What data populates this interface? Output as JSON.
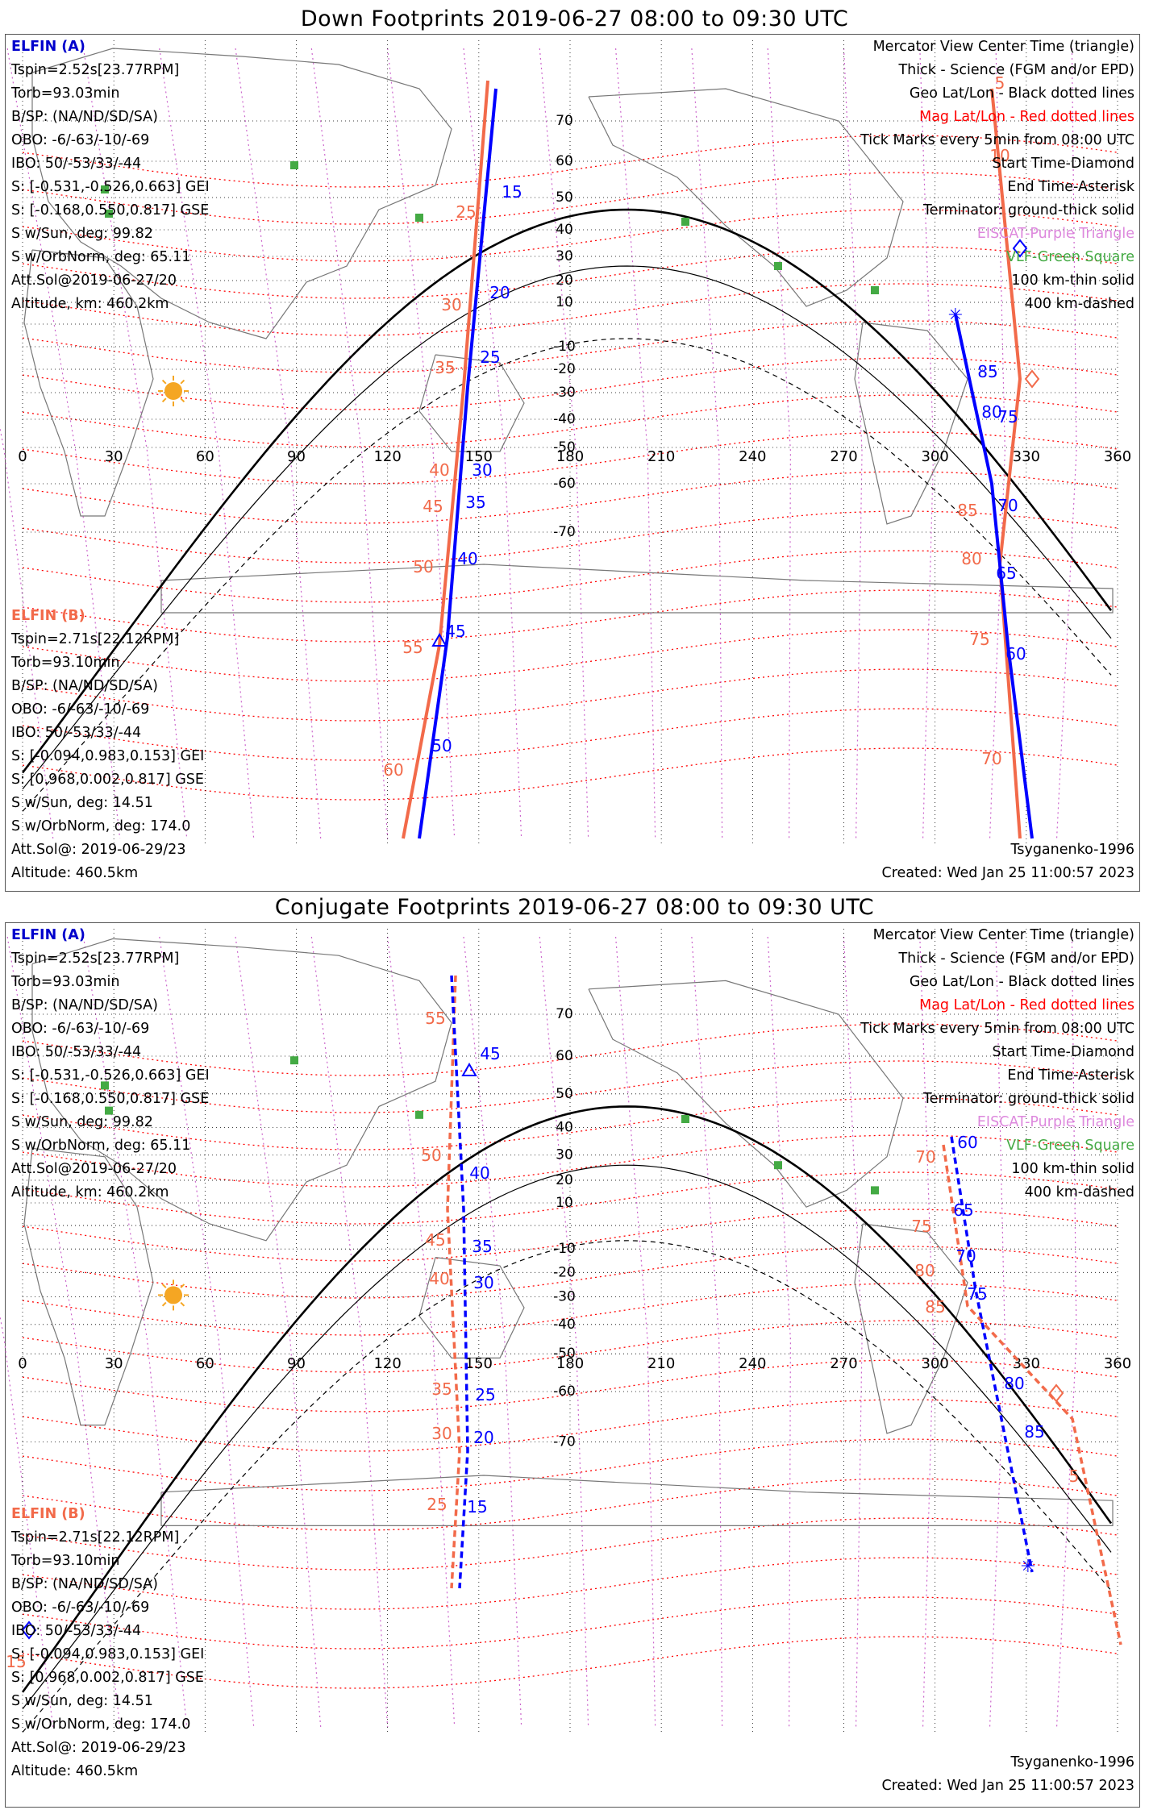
{
  "panels": [
    {
      "title": "Down Footprints 2019-06-27 08:00 to 09:30 UTC",
      "elfin_a": {
        "name": "ELFIN (A)",
        "tspin": "Tspin=2.52s[23.77RPM]",
        "torb": "Torb=93.03min",
        "bsp": "B/SP: (NA/ND/SD/SA)",
        "obo": "OBO: -6/-63/-10/-69",
        "ibo": "IBO: 50/-53/33/-44",
        "s_gei": "S: [-0.531,-0.526,0.663] GEI",
        "s_gse": "S: [-0.168,0.550,0.817] GSE",
        "s_sun": "S w/Sun, deg: 99.82",
        "s_orb": "S w/OrbNorm, deg: 65.11",
        "att": "Att.Sol@2019-06-27/20",
        "alt": "Altitude, km: 460.2km"
      },
      "elfin_b": {
        "name": "ELFIN (B)",
        "tspin": "Tspin=2.71s[22.12RPM]",
        "torb": "Torb=93.10min",
        "bsp": "B/SP: (NA/ND/SD/SA)",
        "obo": "OBO: -6/-63/-10/-69",
        "ibo": "IBO: 50/-53/33/-44",
        "s_gei": "S: [-0.094,0.983,0.153] GEI",
        "s_gse": "S: [0.968,0.002,0.817] GSE",
        "s_sun": "S w/Sun, deg: 14.51",
        "s_orb": "S w/OrbNorm, deg: 174.0",
        "att": "Att.Sol@: 2019-06-29/23",
        "alt": "Altitude: 460.5km"
      },
      "legend": {
        "view": "Mercator View Center Time (triangle)",
        "thick": "Thick - Science (FGM and/or EPD)",
        "geo": "Geo Lat/Lon - Black dotted lines",
        "mag": "Mag Lat/Lon - Red dotted lines",
        "ticks": "Tick Marks every 5min from 08:00 UTC",
        "start": "Start Time-Diamond",
        "end": "End Time-Asterisk",
        "terminator": "Terminator: ground-thick solid",
        "eiscat": "EISCAT-Purple Triangle",
        "vlf": "VLF-Green Square",
        "km100": "100 km-thin solid",
        "km400": "400 km-dashed"
      },
      "model": "Tsyganenko-1996",
      "created": "Created: Wed Jan 25 11:00:57 2023",
      "track_a_labels": [
        "15",
        "20",
        "25",
        "30",
        "35",
        "40",
        "45",
        "50",
        "60",
        "65",
        "70",
        "75",
        "80",
        "85"
      ],
      "track_b_labels": [
        "25",
        "30",
        "35",
        "40",
        "45",
        "50",
        "55",
        "60",
        "70",
        "75",
        "80",
        "85",
        "5",
        "10"
      ]
    },
    {
      "title": "Conjugate Footprints 2019-06-27 08:00 to 09:30 UTC",
      "elfin_a": {
        "name": "ELFIN (A)",
        "tspin": "Tspin=2.52s[23.77RPM]",
        "torb": "Torb=93.03min",
        "bsp": "B/SP: (NA/ND/SD/SA)",
        "obo": "OBO: -6/-63/-10/-69",
        "ibo": "IBO: 50/-53/33/-44",
        "s_gei": "S: [-0.531,-0.526,0.663] GEI",
        "s_gse": "S: [-0.168,0.550,0.817] GSE",
        "s_sun": "S w/Sun, deg: 99.82",
        "s_orb": "S w/OrbNorm, deg: 65.11",
        "att": "Att.Sol@2019-06-27/20",
        "alt": "Altitude, km: 460.2km"
      },
      "elfin_b": {
        "name": "ELFIN (B)",
        "tspin": "Tspin=2.71s[22.12RPM]",
        "torb": "Torb=93.10min",
        "bsp": "B/SP: (NA/ND/SD/SA)",
        "obo": "OBO: -6/-63/-10/-69",
        "ibo": "IBO: 50/-53/33/-44",
        "s_gei": "S: [-0.094,0.983,0.153] GEI",
        "s_gse": "S: [0.968,0.002,0.817] GSE",
        "s_sun": "S w/Sun, deg: 14.51",
        "s_orb": "S w/OrbNorm, deg: 174.0",
        "att": "Att.Sol@: 2019-06-29/23",
        "alt": "Altitude: 460.5km"
      },
      "legend": {
        "view": "Mercator View Center Time (triangle)",
        "thick": "Thick - Science (FGM and/or EPD)",
        "geo": "Geo Lat/Lon - Black dotted lines",
        "mag": "Mag Lat/Lon - Red dotted lines",
        "ticks": "Tick Marks every 5min from 08:00 UTC",
        "start": "Start Time-Diamond",
        "end": "End Time-Asterisk",
        "terminator": "Terminator: ground-thick solid",
        "eiscat": "EISCAT-Purple Triangle",
        "vlf": "VLF-Green Square",
        "km100": "100 km-thin solid",
        "km400": "400 km-dashed"
      },
      "model": "Tsyganenko-1996",
      "created": "Created: Wed Jan 25 11:00:57 2023",
      "track_a_labels": [
        "45",
        "40",
        "35",
        "30",
        "25",
        "20",
        "15",
        "60",
        "65",
        "70",
        "75",
        "80",
        "85"
      ],
      "track_b_labels": [
        "55",
        "50",
        "45",
        "40",
        "35",
        "30",
        "25",
        "70",
        "75",
        "80",
        "85",
        "5",
        "15"
      ]
    }
  ],
  "map": {
    "lon_ticks": [
      "0",
      "30",
      "60",
      "90",
      "120",
      "150",
      "180",
      "210",
      "240",
      "270",
      "300",
      "330",
      "360"
    ],
    "lat_ticks_top": [
      "70",
      "60",
      "50",
      "40",
      "30",
      "20",
      "10",
      "-10",
      "-20",
      "-30",
      "-40",
      "-50",
      "-60",
      "-70"
    ],
    "colors": {
      "elfin_a": "#0000ff",
      "elfin_b": "#f26a4a",
      "mag_grid": "#ff0000",
      "geo_mag_meridians": "#cc66cc",
      "vlf": "#44aa44",
      "sun": "#f5a623"
    }
  }
}
